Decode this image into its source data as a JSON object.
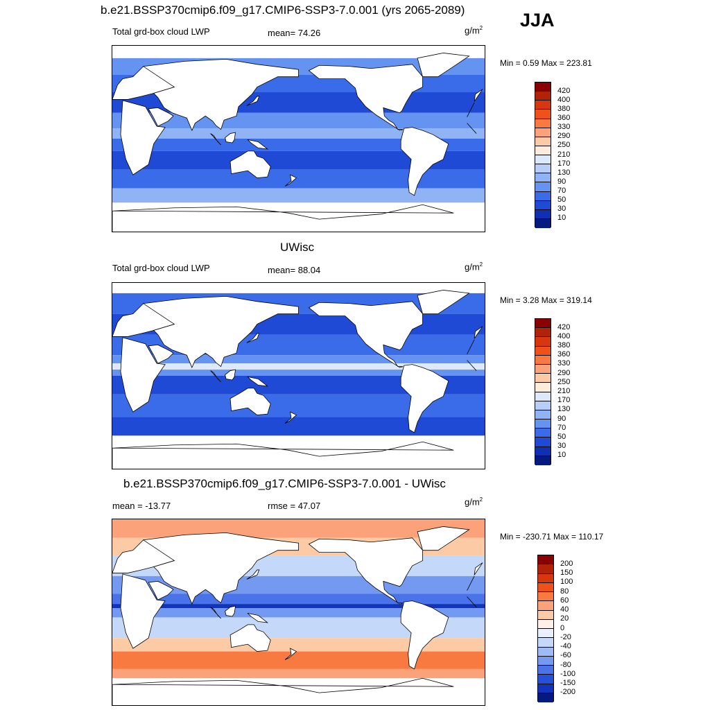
{
  "season": "JJA",
  "panels": [
    {
      "title": "b.e21.BSSP370cmip6.f09_g17.CMIP6-SSP3-7.0.001 (yrs 2065-2089)",
      "left_label": "Total grd-box cloud LWP",
      "center_label": "mean=  74.26",
      "units_base": "g/m",
      "units_exp": "2",
      "minmax": "Min =   0.59 Max = 223.81",
      "field": "model",
      "colorbar": {
        "labels": [
          "420",
          "400",
          "380",
          "360",
          "330",
          "290",
          "250",
          "210",
          "170",
          "130",
          "90",
          "70",
          "50",
          "30",
          "10"
        ],
        "colors": [
          "#8b0000",
          "#b22208",
          "#d8360e",
          "#f0501a",
          "#f87a40",
          "#fba27a",
          "#fdcaa6",
          "#fdebdc",
          "#dbe9fb",
          "#b6cff8",
          "#8fb3f5",
          "#6593f1",
          "#3a6cea",
          "#1f4ad6",
          "#1030b4",
          "#041a80"
        ]
      }
    },
    {
      "title": "UWisc",
      "left_label": "Total grd-box cloud LWP",
      "center_label": "mean=  88.04",
      "units_base": "g/m",
      "units_exp": "2",
      "minmax": "Min =   3.28 Max = 319.14",
      "field": "obs",
      "colorbar": {
        "labels": [
          "420",
          "400",
          "380",
          "360",
          "330",
          "290",
          "250",
          "210",
          "170",
          "130",
          "90",
          "70",
          "50",
          "30",
          "10"
        ],
        "colors": [
          "#8b0000",
          "#b22208",
          "#d8360e",
          "#f0501a",
          "#f87a40",
          "#fba27a",
          "#fdcaa6",
          "#fdebdc",
          "#dbe9fb",
          "#b6cff8",
          "#8fb3f5",
          "#6593f1",
          "#3a6cea",
          "#1f4ad6",
          "#1030b4",
          "#041a80"
        ]
      }
    },
    {
      "title": "b.e21.BSSP370cmip6.f09_g17.CMIP6-SSP3-7.0.001 - UWisc",
      "left_label": "mean = -13.77",
      "center_label": "rmse =  47.07",
      "units_base": "g/m",
      "units_exp": "2",
      "minmax": "Min = -230.71 Max = 110.17",
      "field": "diff",
      "colorbar": {
        "labels": [
          "200",
          "150",
          "100",
          "80",
          "60",
          "40",
          "20",
          "0",
          "-20",
          "-40",
          "-60",
          "-80",
          "-100",
          "-150",
          "-200"
        ],
        "colors": [
          "#8b0000",
          "#b22208",
          "#d8360e",
          "#f0501a",
          "#f87a40",
          "#fba27a",
          "#fdcaa6",
          "#fef0e6",
          "#e8f0fd",
          "#c4d8fa",
          "#9dbcf6",
          "#7399f1",
          "#4a73ea",
          "#2550d8",
          "#1234b8",
          "#041a80"
        ]
      }
    }
  ]
}
